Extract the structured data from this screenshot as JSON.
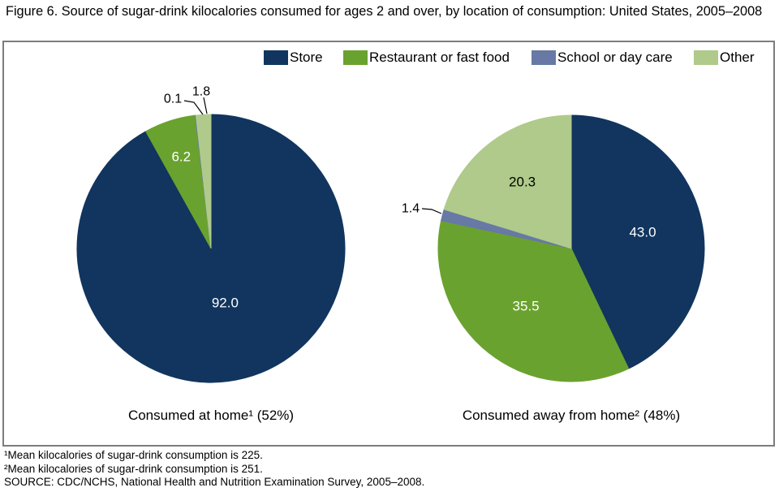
{
  "chart_data": {
    "type": "pie",
    "title": "Figure 6. Source of sugar-drink kilocalories consumed for ages 2 and over, by location of consumption: United States, 2005–2008",
    "legend": [
      "Store",
      "Restaurant or fast food",
      "School or day care",
      "Other"
    ],
    "legend_position": "top",
    "slice_colors": [
      "#11355e",
      "#6aa22f",
      "#6779a4",
      "#afca8b"
    ],
    "pies": [
      {
        "caption": "Consumed at home¹ (52%)",
        "categories": [
          "Store",
          "Restaurant or fast food",
          "School or day care",
          "Other"
        ],
        "values": [
          92.0,
          6.2,
          0.1,
          1.8
        ]
      },
      {
        "caption": "Consumed away from home² (48%)",
        "categories": [
          "Store",
          "Restaurant or fast food",
          "School or day care",
          "Other"
        ],
        "values": [
          43.0,
          35.5,
          1.4,
          20.3
        ]
      }
    ]
  },
  "footnotes": [
    "¹Mean kilocalories of sugar-drink consumption is 225.",
    "²Mean kilocalories of sugar-drink consumption is 251.",
    "SOURCE: CDC/NCHS, National Health and Nutrition Examination Survey, 2005–2008."
  ],
  "colors": {
    "border": "#7d7d7d",
    "inside_label": "#ffffff",
    "outside_label": "#000000",
    "leader_line": "#000000"
  }
}
